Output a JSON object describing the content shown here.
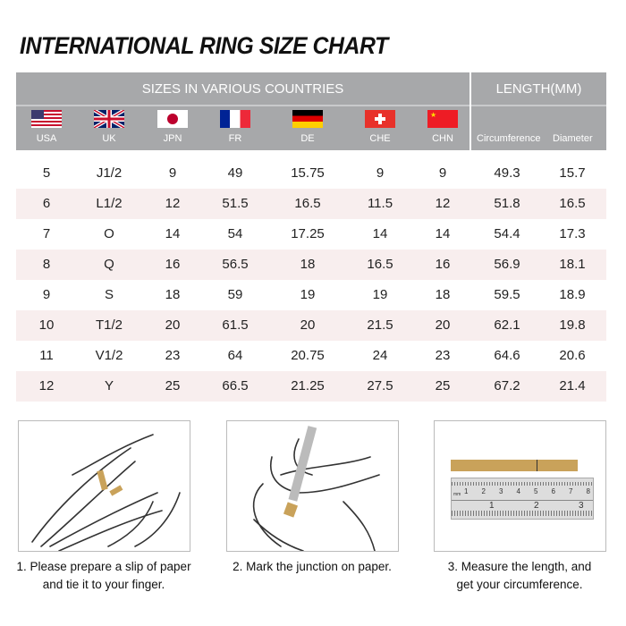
{
  "title": "INTERNATIONAL RING SIZE CHART",
  "header": {
    "sizes_label": "SIZES IN VARIOUS COUNTRIES",
    "length_label": "LENGTH(MM)",
    "countries": [
      {
        "code": "USA",
        "flag": "us-flag-icon"
      },
      {
        "code": "UK",
        "flag": "uk-flag-icon"
      },
      {
        "code": "JPN",
        "flag": "japan-flag-icon"
      },
      {
        "code": "FR",
        "flag": "france-flag-icon"
      },
      {
        "code": "DE",
        "flag": "germany-flag-icon"
      },
      {
        "code": "CHE",
        "flag": "switzerland-flag-icon"
      },
      {
        "code": "CHN",
        "flag": "china-flag-icon"
      }
    ],
    "length_cols": [
      "Circumference",
      "Diameter"
    ]
  },
  "rows": [
    [
      "5",
      "J1/2",
      "9",
      "49",
      "15.75",
      "9",
      "9",
      "49.3",
      "15.7"
    ],
    [
      "6",
      "L1/2",
      "12",
      "51.5",
      "16.5",
      "11.5",
      "12",
      "51.8",
      "16.5"
    ],
    [
      "7",
      "O",
      "14",
      "54",
      "17.25",
      "14",
      "14",
      "54.4",
      "17.3"
    ],
    [
      "8",
      "Q",
      "16",
      "56.5",
      "18",
      "16.5",
      "16",
      "56.9",
      "18.1"
    ],
    [
      "9",
      "S",
      "18",
      "59",
      "19",
      "19",
      "18",
      "59.5",
      "18.9"
    ],
    [
      "10",
      "T1/2",
      "20",
      "61.5",
      "20",
      "21.5",
      "20",
      "62.1",
      "19.8"
    ],
    [
      "11",
      "V1/2",
      "23",
      "64",
      "20.75",
      "24",
      "23",
      "64.6",
      "20.6"
    ],
    [
      "12",
      "Y",
      "25",
      "66.5",
      "21.25",
      "27.5",
      "25",
      "67.2",
      "21.4"
    ]
  ],
  "steps": [
    {
      "line1": "1. Please prepare a slip of paper",
      "line2": "and tie it to your finger."
    },
    {
      "line1": "2. Mark the junction on paper.",
      "line2": ""
    },
    {
      "line1": "3. Measure the length, and",
      "line2": "get your circumference."
    }
  ],
  "ruler": {
    "top_ticks": [
      "1",
      "2",
      "3",
      "4",
      "5",
      "6",
      "7",
      "8"
    ],
    "bottom_ticks": [
      "1",
      "2",
      "3"
    ],
    "unit": "mm"
  },
  "colors": {
    "header_bg": "#a7a8aa",
    "alt_row": "#f8eeee",
    "paper": "#c9a25a"
  }
}
